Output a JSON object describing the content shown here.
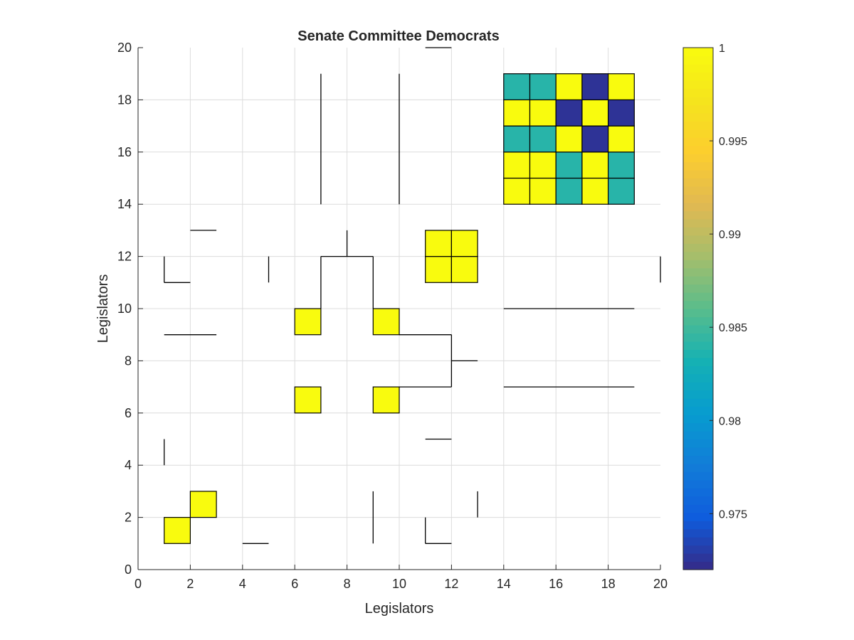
{
  "chart_data": {
    "type": "heatmap",
    "title": "Senate Committee Democrats",
    "xlabel": "Legislators",
    "ylabel": "Legislators",
    "xlim": [
      0,
      20
    ],
    "ylim": [
      0,
      20
    ],
    "xticks": [
      0,
      2,
      4,
      6,
      8,
      10,
      12,
      14,
      16,
      18,
      20
    ],
    "yticks": [
      0,
      2,
      4,
      6,
      8,
      10,
      12,
      14,
      16,
      18,
      20
    ],
    "grid": true,
    "colormap": "parula",
    "colorbar": {
      "range": [
        0.972,
        1.0
      ],
      "ticks": [
        0.975,
        0.98,
        0.985,
        0.99,
        0.995,
        1
      ],
      "tick_labels": [
        "0.975",
        "0.98",
        "0.985",
        "0.99",
        "0.995",
        "1"
      ],
      "position": "right"
    },
    "cells": [
      {
        "x": 1,
        "y": 1,
        "value": 1
      },
      {
        "x": 2,
        "y": 2,
        "value": 1
      },
      {
        "x": 6,
        "y": 6,
        "value": 1
      },
      {
        "x": 9,
        "y": 6,
        "value": 1
      },
      {
        "x": 6,
        "y": 9,
        "value": 1
      },
      {
        "x": 9,
        "y": 9,
        "value": 1
      },
      {
        "x": 11,
        "y": 11,
        "value": 1
      },
      {
        "x": 12,
        "y": 11,
        "value": 1
      },
      {
        "x": 11,
        "y": 12,
        "value": 1
      },
      {
        "x": 12,
        "y": 12,
        "value": 1
      },
      {
        "x": 14,
        "y": 14,
        "value": 1
      },
      {
        "x": 15,
        "y": 14,
        "value": 1
      },
      {
        "x": 16,
        "y": 14,
        "value": 0.984
      },
      {
        "x": 17,
        "y": 14,
        "value": 1
      },
      {
        "x": 18,
        "y": 14,
        "value": 0.984
      },
      {
        "x": 14,
        "y": 15,
        "value": 1
      },
      {
        "x": 15,
        "y": 15,
        "value": 1
      },
      {
        "x": 16,
        "y": 15,
        "value": 0.984
      },
      {
        "x": 17,
        "y": 15,
        "value": 1
      },
      {
        "x": 18,
        "y": 15,
        "value": 0.984
      },
      {
        "x": 14,
        "y": 16,
        "value": 0.984
      },
      {
        "x": 15,
        "y": 16,
        "value": 0.984
      },
      {
        "x": 16,
        "y": 16,
        "value": 1
      },
      {
        "x": 17,
        "y": 16,
        "value": 0.9725
      },
      {
        "x": 18,
        "y": 16,
        "value": 1
      },
      {
        "x": 14,
        "y": 17,
        "value": 1
      },
      {
        "x": 15,
        "y": 17,
        "value": 1
      },
      {
        "x": 16,
        "y": 17,
        "value": 0.9725
      },
      {
        "x": 17,
        "y": 17,
        "value": 1
      },
      {
        "x": 18,
        "y": 17,
        "value": 0.9725
      },
      {
        "x": 14,
        "y": 18,
        "value": 0.984
      },
      {
        "x": 15,
        "y": 18,
        "value": 0.984
      },
      {
        "x": 16,
        "y": 18,
        "value": 1
      },
      {
        "x": 17,
        "y": 18,
        "value": 0.9725
      },
      {
        "x": 18,
        "y": 18,
        "value": 1
      }
    ],
    "segments": [
      {
        "x1": 2,
        "y1": 13,
        "x2": 3,
        "y2": 13
      },
      {
        "x1": 1,
        "y1": 11,
        "x2": 1,
        "y2": 12
      },
      {
        "x1": 1,
        "y1": 11,
        "x2": 2,
        "y2": 11
      },
      {
        "x1": 5,
        "y1": 11,
        "x2": 5,
        "y2": 12
      },
      {
        "x1": 1,
        "y1": 9,
        "x2": 3,
        "y2": 9
      },
      {
        "x1": 1,
        "y1": 4,
        "x2": 1,
        "y2": 5
      },
      {
        "x1": 4,
        "y1": 1,
        "x2": 5,
        "y2": 1
      },
      {
        "x1": 7,
        "y1": 14,
        "x2": 7,
        "y2": 19
      },
      {
        "x1": 10,
        "y1": 14,
        "x2": 10,
        "y2": 19
      },
      {
        "x1": 11,
        "y1": 20,
        "x2": 12,
        "y2": 20
      },
      {
        "x1": 7,
        "y1": 10,
        "x2": 7,
        "y2": 12
      },
      {
        "x1": 7,
        "y1": 12,
        "x2": 9,
        "y2": 12
      },
      {
        "x1": 8,
        "y1": 12,
        "x2": 8,
        "y2": 13
      },
      {
        "x1": 9,
        "y1": 10,
        "x2": 9,
        "y2": 12
      },
      {
        "x1": 10,
        "y1": 9,
        "x2": 12,
        "y2": 9
      },
      {
        "x1": 12,
        "y1": 7,
        "x2": 12,
        "y2": 9
      },
      {
        "x1": 10,
        "y1": 7,
        "x2": 12,
        "y2": 7
      },
      {
        "x1": 12,
        "y1": 8,
        "x2": 13,
        "y2": 8
      },
      {
        "x1": 14,
        "y1": 10,
        "x2": 19,
        "y2": 10
      },
      {
        "x1": 14,
        "y1": 7,
        "x2": 19,
        "y2": 7
      },
      {
        "x1": 20,
        "y1": 11,
        "x2": 20,
        "y2": 12
      },
      {
        "x1": 11,
        "y1": 5,
        "x2": 12,
        "y2": 5
      },
      {
        "x1": 9,
        "y1": 1,
        "x2": 9,
        "y2": 3
      },
      {
        "x1": 11,
        "y1": 1,
        "x2": 11,
        "y2": 2
      },
      {
        "x1": 11,
        "y1": 1,
        "x2": 12,
        "y2": 1
      },
      {
        "x1": 13,
        "y1": 2,
        "x2": 13,
        "y2": 3
      }
    ]
  }
}
